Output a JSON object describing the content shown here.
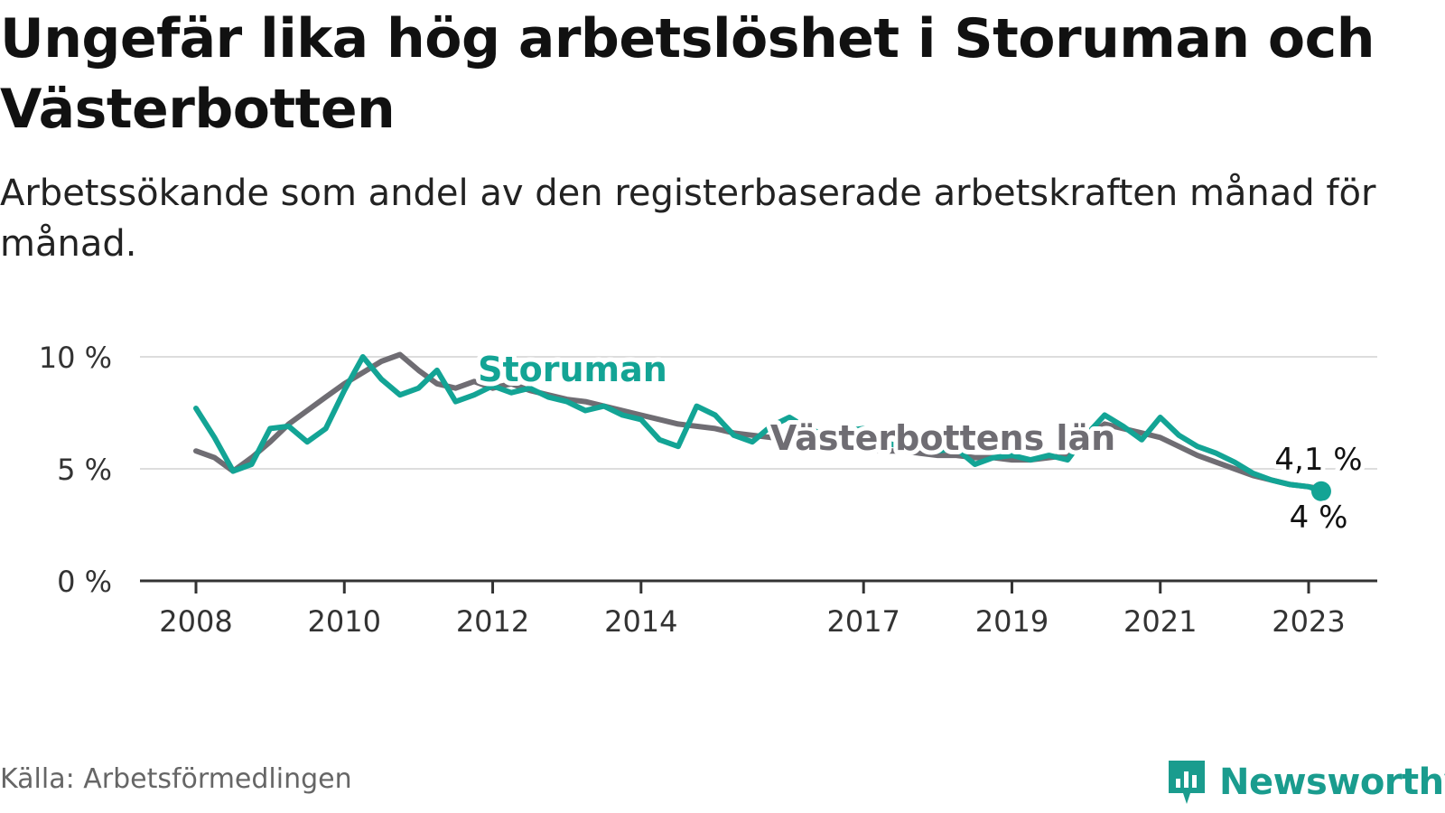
{
  "header": {
    "title": "Ungefär lika hög arbetslöshet i Storuman och Västerbotten",
    "subtitle": "Arbetssökande som andel av den registerbaserade arbetskraften månad för månad."
  },
  "footer": {
    "source": "Källa: Arbetsförmedlingen",
    "brand": "Newsworthy"
  },
  "colors": {
    "storuman": "#13a495",
    "vasterbotten": "#6f6d73",
    "grid": "#dddddd",
    "axis": "#333333",
    "brand": "#1a9c8e"
  },
  "icons": {
    "brand_logo": "newsworthy-logo-icon"
  },
  "chart_data": {
    "type": "line",
    "x_ticks": [
      "2008",
      "2010",
      "2012",
      "2014",
      "2017",
      "2019",
      "2021",
      "2023"
    ],
    "y_ticks": [
      "0 %",
      "5 %",
      "10 %"
    ],
    "y_tick_values": [
      0,
      5,
      10
    ],
    "ylim": [
      0,
      10
    ],
    "xlim": [
      2007.25,
      2024.0
    ],
    "grid": true,
    "series": [
      {
        "name": "Västerbottens län",
        "color_key": "vasterbotten",
        "end_label": "4,1 %",
        "points": [
          [
            2008.0,
            5.8
          ],
          [
            2008.25,
            5.5
          ],
          [
            2008.5,
            4.9
          ],
          [
            2008.75,
            5.5
          ],
          [
            2009.0,
            6.2
          ],
          [
            2009.25,
            7.0
          ],
          [
            2009.5,
            7.6
          ],
          [
            2009.75,
            8.2
          ],
          [
            2010.0,
            8.8
          ],
          [
            2010.25,
            9.3
          ],
          [
            2010.5,
            9.8
          ],
          [
            2010.75,
            10.1
          ],
          [
            2011.0,
            9.4
          ],
          [
            2011.25,
            8.8
          ],
          [
            2011.5,
            8.6
          ],
          [
            2011.75,
            8.9
          ],
          [
            2012.0,
            8.6
          ],
          [
            2012.25,
            8.8
          ],
          [
            2012.5,
            8.5
          ],
          [
            2012.75,
            8.3
          ],
          [
            2013.0,
            8.1
          ],
          [
            2013.25,
            8.0
          ],
          [
            2013.5,
            7.8
          ],
          [
            2013.75,
            7.6
          ],
          [
            2014.0,
            7.4
          ],
          [
            2014.25,
            7.2
          ],
          [
            2014.5,
            7.0
          ],
          [
            2014.75,
            6.9
          ],
          [
            2015.0,
            6.8
          ],
          [
            2015.25,
            6.6
          ],
          [
            2015.5,
            6.5
          ],
          [
            2015.75,
            6.4
          ],
          [
            2016.0,
            6.3
          ],
          [
            2016.25,
            6.2
          ],
          [
            2016.5,
            6.1
          ],
          [
            2016.75,
            6.0
          ],
          [
            2017.0,
            5.9
          ],
          [
            2017.25,
            5.8
          ],
          [
            2017.5,
            5.8
          ],
          [
            2017.75,
            5.7
          ],
          [
            2018.0,
            5.6
          ],
          [
            2018.25,
            5.6
          ],
          [
            2018.5,
            5.5
          ],
          [
            2018.75,
            5.5
          ],
          [
            2019.0,
            5.4
          ],
          [
            2019.25,
            5.4
          ],
          [
            2019.5,
            5.5
          ],
          [
            2019.75,
            5.6
          ],
          [
            2020.0,
            6.4
          ],
          [
            2020.25,
            7.0
          ],
          [
            2020.5,
            6.8
          ],
          [
            2020.75,
            6.6
          ],
          [
            2021.0,
            6.4
          ],
          [
            2021.25,
            6.0
          ],
          [
            2021.5,
            5.6
          ],
          [
            2021.75,
            5.3
          ],
          [
            2022.0,
            5.0
          ],
          [
            2022.25,
            4.7
          ],
          [
            2022.5,
            4.5
          ],
          [
            2022.75,
            4.3
          ],
          [
            2023.0,
            4.2
          ],
          [
            2023.17,
            4.1
          ]
        ]
      },
      {
        "name": "Storuman",
        "color_key": "storuman",
        "end_label": "4 %",
        "points": [
          [
            2008.0,
            7.7
          ],
          [
            2008.25,
            6.4
          ],
          [
            2008.5,
            4.9
          ],
          [
            2008.75,
            5.2
          ],
          [
            2009.0,
            6.8
          ],
          [
            2009.25,
            6.9
          ],
          [
            2009.5,
            6.2
          ],
          [
            2009.75,
            6.8
          ],
          [
            2010.0,
            8.5
          ],
          [
            2010.25,
            10.0
          ],
          [
            2010.5,
            9.0
          ],
          [
            2010.75,
            8.3
          ],
          [
            2011.0,
            8.6
          ],
          [
            2011.25,
            9.4
          ],
          [
            2011.5,
            8.0
          ],
          [
            2011.75,
            8.3
          ],
          [
            2012.0,
            8.7
          ],
          [
            2012.25,
            8.4
          ],
          [
            2012.5,
            8.6
          ],
          [
            2012.75,
            8.2
          ],
          [
            2013.0,
            8.0
          ],
          [
            2013.25,
            7.6
          ],
          [
            2013.5,
            7.8
          ],
          [
            2013.75,
            7.4
          ],
          [
            2014.0,
            7.2
          ],
          [
            2014.25,
            6.3
          ],
          [
            2014.5,
            6.0
          ],
          [
            2014.75,
            7.8
          ],
          [
            2015.0,
            7.4
          ],
          [
            2015.25,
            6.5
          ],
          [
            2015.5,
            6.2
          ],
          [
            2015.75,
            6.9
          ],
          [
            2016.0,
            7.3
          ],
          [
            2016.25,
            6.8
          ],
          [
            2016.5,
            6.5
          ],
          [
            2016.75,
            6.7
          ],
          [
            2017.0,
            6.8
          ],
          [
            2017.25,
            6.2
          ],
          [
            2017.5,
            6.0
          ],
          [
            2017.75,
            6.1
          ],
          [
            2018.0,
            5.8
          ],
          [
            2018.25,
            5.9
          ],
          [
            2018.5,
            5.2
          ],
          [
            2018.75,
            5.5
          ],
          [
            2019.0,
            5.6
          ],
          [
            2019.25,
            5.4
          ],
          [
            2019.5,
            5.6
          ],
          [
            2019.75,
            5.4
          ],
          [
            2020.0,
            6.5
          ],
          [
            2020.25,
            7.4
          ],
          [
            2020.5,
            6.9
          ],
          [
            2020.75,
            6.3
          ],
          [
            2021.0,
            7.3
          ],
          [
            2021.25,
            6.5
          ],
          [
            2021.5,
            6.0
          ],
          [
            2021.75,
            5.7
          ],
          [
            2022.0,
            5.3
          ],
          [
            2022.25,
            4.8
          ],
          [
            2022.5,
            4.5
          ],
          [
            2022.75,
            4.3
          ],
          [
            2023.0,
            4.2
          ],
          [
            2023.17,
            4.0
          ]
        ]
      }
    ],
    "annotations": [
      {
        "text": "Storuman",
        "series": "Storuman"
      },
      {
        "text": "Västerbottens län",
        "series": "Västerbottens län"
      }
    ]
  }
}
